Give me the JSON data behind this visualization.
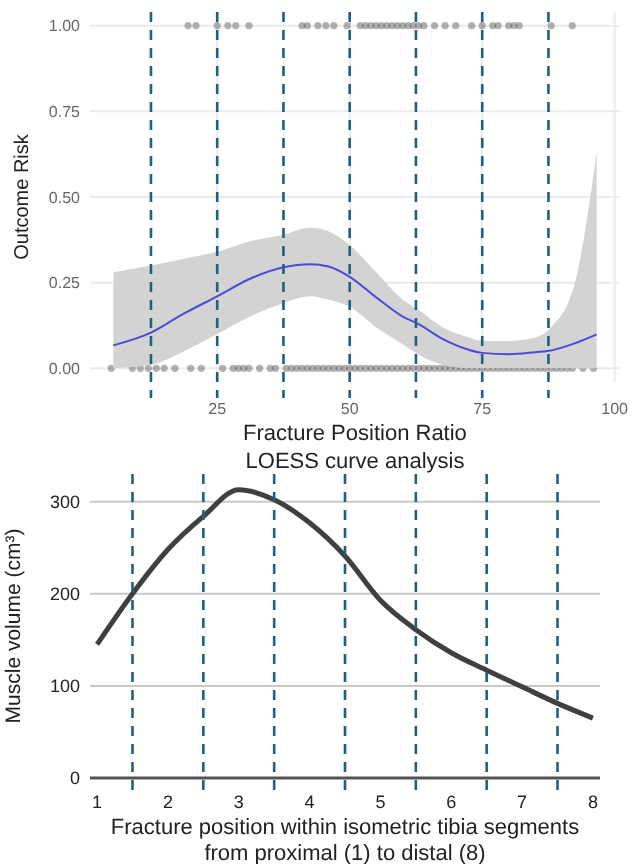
{
  "chart_data": [
    {
      "type": "line",
      "xlabel": "Fracture Position Ratio",
      "ylabel": "Outcome Risk",
      "annotations": [
        "LOESS curve analysis"
      ],
      "xlim": [
        1,
        101
      ],
      "ylim": [
        -0.04,
        1.04
      ],
      "xticks": [
        25,
        50,
        75,
        100
      ],
      "yticks": [
        {
          "value": 0,
          "label": "0.00"
        },
        {
          "value": 0.25,
          "label": "0.25"
        },
        {
          "value": 0.5,
          "label": "0.50"
        },
        {
          "value": 0.75,
          "label": "0.75"
        },
        {
          "value": 1,
          "label": "1.00"
        }
      ],
      "grid": true,
      "series": [
        {
          "type": "scatter",
          "color": "#555555",
          "x": [
            19.5,
            21,
            25,
            27,
            28.5,
            31,
            41,
            42,
            44,
            45.5,
            47,
            49.5,
            52,
            53,
            54,
            55,
            56,
            57,
            58,
            59,
            60,
            61,
            62,
            63,
            64,
            66,
            68,
            70,
            73,
            75,
            77,
            78,
            80,
            81,
            82,
            88,
            92
          ],
          "values": [
            1,
            1,
            1,
            1,
            1,
            1,
            1,
            1,
            1,
            1,
            1,
            1,
            1,
            1,
            1,
            1,
            1,
            1,
            1,
            1,
            1,
            1,
            1,
            1,
            1,
            1,
            1,
            1,
            1,
            1,
            1,
            1,
            1,
            1,
            1,
            1,
            1
          ]
        },
        {
          "type": "scatter",
          "color": "#555555",
          "x": [
            5,
            9,
            10.5,
            12,
            13.5,
            15,
            17,
            20,
            22,
            26,
            28,
            29,
            30,
            31,
            33,
            35,
            36,
            38,
            39,
            40,
            41,
            42,
            43,
            44,
            45,
            46,
            47,
            48,
            49,
            50,
            51,
            52,
            53,
            54,
            55,
            56,
            57,
            58,
            59,
            60,
            61,
            62,
            63,
            64,
            65,
            66,
            67,
            68,
            69,
            70,
            71,
            72,
            73,
            74,
            75,
            76,
            77,
            78,
            79,
            80,
            81,
            82,
            83,
            84,
            85,
            86,
            87,
            88,
            89,
            90,
            91,
            92,
            94,
            96
          ],
          "values": [
            0,
            0,
            0,
            0,
            0,
            0,
            0,
            0,
            0,
            0,
            0,
            0,
            0,
            0,
            0,
            0,
            0,
            0,
            0,
            0,
            0,
            0,
            0,
            0,
            0,
            0,
            0,
            0,
            0,
            0,
            0,
            0,
            0,
            0,
            0,
            0,
            0,
            0,
            0,
            0,
            0,
            0,
            0,
            0,
            0,
            0,
            0,
            0,
            0,
            0,
            0,
            0,
            0,
            0,
            0,
            0,
            0,
            0,
            0,
            0,
            0,
            0,
            0,
            0,
            0,
            0,
            0,
            0,
            0,
            0,
            0,
            0,
            0,
            0
          ]
        },
        {
          "color": "#4b4bd6",
          "x": [
            5.4,
            12.5,
            18.75,
            25,
            31,
            37.5,
            42.5,
            46,
            50,
            55,
            60,
            63,
            67.5,
            72.5,
            75,
            80,
            85,
            88,
            92.5,
            96.6
          ],
          "values": [
            0.067,
            0.104,
            0.16,
            0.21,
            0.26,
            0.295,
            0.304,
            0.297,
            0.267,
            0.207,
            0.151,
            0.129,
            0.086,
            0.054,
            0.045,
            0.041,
            0.047,
            0.052,
            0.073,
            0.099
          ],
          "lower": [
            0,
            0.01,
            0.05,
            0.1,
            0.15,
            0.19,
            0.21,
            0.2,
            0.18,
            0.12,
            0.07,
            0.04,
            0.01,
            0,
            0,
            0,
            0,
            0,
            0,
            0
          ],
          "upper": [
            0.28,
            0.3,
            0.32,
            0.34,
            0.37,
            0.39,
            0.41,
            0.4,
            0.36,
            0.28,
            0.2,
            0.17,
            0.12,
            0.09,
            0.08,
            0.08,
            0.09,
            0.12,
            0.25,
            0.63
          ]
        }
      ],
      "ref_lines": [
        {
          "axis": "x",
          "value": 12.5,
          "color": "#1f5f7f",
          "line_style": "dashed"
        },
        {
          "axis": "x",
          "value": 25,
          "color": "#1f5f7f",
          "line_style": "dashed"
        },
        {
          "axis": "x",
          "value": 37.5,
          "color": "#1f5f7f",
          "line_style": "dashed"
        },
        {
          "axis": "x",
          "value": 50,
          "color": "#1f5f7f",
          "line_style": "dashed"
        },
        {
          "axis": "x",
          "value": 62.5,
          "color": "#1f5f7f",
          "line_style": "dashed"
        },
        {
          "axis": "x",
          "value": 75,
          "color": "#1f5f7f",
          "line_style": "dashed"
        },
        {
          "axis": "x",
          "value": 87.5,
          "color": "#1f5f7f",
          "line_style": "dashed"
        }
      ]
    },
    {
      "type": "line",
      "xlabel": "Fracture position within isometric tibia segments from proximal (1) to distal (8)",
      "ylabel": "Muscle volume (cm³)",
      "xlim": [
        0.9,
        8.1
      ],
      "ylim": [
        0,
        330
      ],
      "xticks": [
        1,
        2,
        3,
        4,
        5,
        6,
        7,
        8
      ],
      "yticks": [
        0,
        100,
        200,
        300
      ],
      "grid": "y",
      "series": [
        {
          "color": "#404040",
          "x": [
            1,
            1.5,
            2,
            2.5,
            3,
            3.5,
            4,
            4.5,
            5,
            5.5,
            6,
            6.5,
            7,
            7.5,
            8
          ],
          "values": [
            145,
            200,
            248,
            284,
            313,
            302,
            277,
            241,
            193,
            161,
            136,
            117,
            99,
            81,
            65
          ]
        }
      ],
      "ref_lines": [
        {
          "axis": "x",
          "value": 1.5,
          "color": "#1f5f7f",
          "line_style": "dashed"
        },
        {
          "axis": "x",
          "value": 2.5,
          "color": "#1f5f7f",
          "line_style": "dashed"
        },
        {
          "axis": "x",
          "value": 3.5,
          "color": "#1f5f7f",
          "line_style": "dashed"
        },
        {
          "axis": "x",
          "value": 4.5,
          "color": "#1f5f7f",
          "line_style": "dashed"
        },
        {
          "axis": "x",
          "value": 5.5,
          "color": "#1f5f7f",
          "line_style": "dashed"
        },
        {
          "axis": "x",
          "value": 6.5,
          "color": "#1f5f7f",
          "line_style": "dashed"
        },
        {
          "axis": "x",
          "value": 7.5,
          "color": "#1f5f7f",
          "line_style": "dashed"
        }
      ]
    }
  ]
}
